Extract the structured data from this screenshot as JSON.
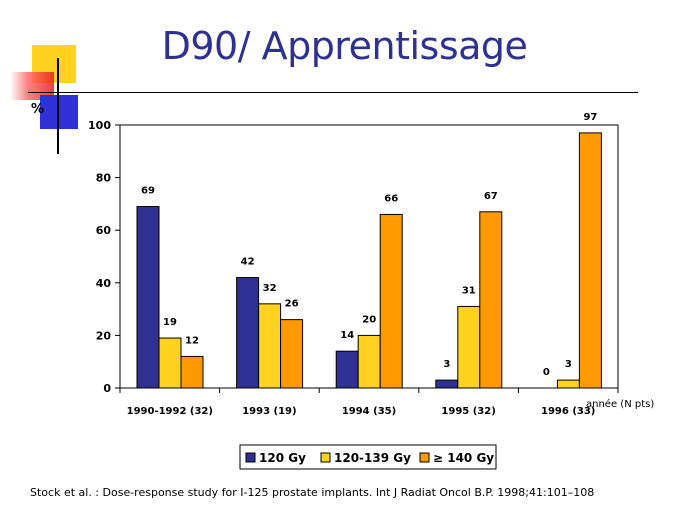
{
  "slide": {
    "title": "D90/ Apprentissage",
    "citation": "Stock et al. : Dose-response study for I-125 prostate implants. Int J Radiat Oncol B.P. 1998;41:101–108"
  },
  "chart_data": {
    "type": "bar",
    "title": "",
    "ylabel": "%",
    "xlabel": "année (N pts)",
    "ylim": [
      0,
      100
    ],
    "yticks": [
      0,
      20,
      40,
      60,
      80,
      100
    ],
    "grid": false,
    "legend_position": "bottom",
    "categories": [
      "1990-1992 (32)",
      "1993 (19)",
      "1994 (35)",
      "1995 (32)",
      "1996 (33)"
    ],
    "series": [
      {
        "name": "120 Gy",
        "color": "#2e3192",
        "values": [
          69,
          42,
          14,
          3,
          0
        ]
      },
      {
        "name": "120-139 Gy",
        "color": "#ffd21f",
        "values": [
          19,
          32,
          20,
          31,
          3
        ]
      },
      {
        "name": "≥ 140 Gy",
        "color": "#ff9900",
        "values": [
          12,
          26,
          66,
          67,
          97
        ]
      }
    ]
  }
}
